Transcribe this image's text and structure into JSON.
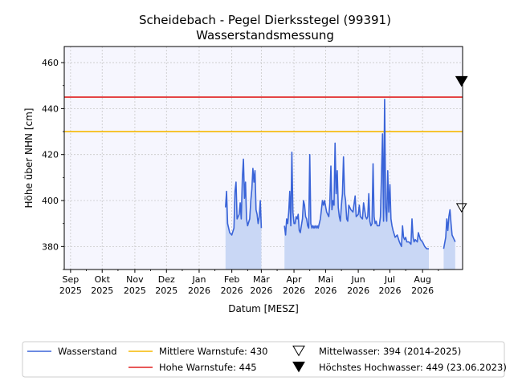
{
  "title_line1": "Scheidebach - Pegel Dierksstegel (99391)",
  "title_line2": "Wasserstandsmessung",
  "colors": {
    "wasserstand": "#3a64d8",
    "fill": "#c9d7f5",
    "mittlere_warnstufe": "#f5b800",
    "hohe_warnstufe": "#e02020",
    "plot_bg": "#f6f6fe"
  },
  "chart_data": {
    "type": "line",
    "title": "Scheidebach - Pegel Dierksstegel (99391)\nWasserstandsmessung",
    "xlabel": "Datum [MESZ]",
    "ylabel": "Höhe über NHN [cm]",
    "xlim": [
      "2025-08-26",
      "2026-09-08"
    ],
    "ylim": [
      370,
      467
    ],
    "grid": true,
    "legend_position": "bottom",
    "x_ticks": [
      {
        "date": "2025-09-01",
        "label": [
          "Sep",
          "2025"
        ]
      },
      {
        "date": "2025-10-01",
        "label": [
          "Okt",
          "2025"
        ]
      },
      {
        "date": "2025-11-01",
        "label": [
          "Nov",
          "2025"
        ]
      },
      {
        "date": "2025-12-01",
        "label": [
          "Dez",
          "2025"
        ]
      },
      {
        "date": "2026-01-01",
        "label": [
          "Jan",
          "2026"
        ]
      },
      {
        "date": "2026-02-01",
        "label": [
          "Feb",
          "2026"
        ]
      },
      {
        "date": "2026-03-01",
        "label": [
          "Mär",
          "2026"
        ]
      },
      {
        "date": "2026-04-01",
        "label": [
          "Apr",
          "2026"
        ]
      },
      {
        "date": "2026-05-01",
        "label": [
          "Mai",
          "2026"
        ]
      },
      {
        "date": "2026-06-01",
        "label": [
          "Jun",
          "2026"
        ]
      },
      {
        "date": "2026-07-01",
        "label": [
          "Jul",
          "2026"
        ]
      },
      {
        "date": "2026-08-01",
        "label": [
          "Aug",
          "2026"
        ]
      }
    ],
    "y_ticks": [
      380,
      400,
      420,
      440,
      460
    ],
    "hlines": [
      {
        "name": "Mittlere Warnstufe: 430",
        "y": 430,
        "color": "#f5b800"
      },
      {
        "name": "Hohe Warnstufe: 445",
        "y": 445,
        "color": "#e02020"
      }
    ],
    "markers": [
      {
        "name": "Mittelwasser: 394 (2014-2025)",
        "date": "2026-09-07",
        "y": 397,
        "style": "open-triangle-down"
      },
      {
        "name": "Höchstes Hochwasser: 449 (23.06.2023)",
        "date": "2026-09-07",
        "y": 452,
        "style": "filled-triangle-down"
      }
    ],
    "series": [
      {
        "name": "Wasserstand",
        "segments": [
          [
            [
              "2026-01-26",
              397
            ],
            [
              "2026-01-27",
              404
            ],
            [
              "2026-01-28",
              390
            ],
            [
              "2026-01-30",
              386
            ],
            [
              "2026-02-01",
              385
            ],
            [
              "2026-02-03",
              388
            ],
            [
              "2026-02-04",
              404
            ],
            [
              "2026-02-05",
              408
            ],
            [
              "2026-02-06",
              392
            ],
            [
              "2026-02-08",
              394
            ],
            [
              "2026-02-09",
              399
            ],
            [
              "2026-02-10",
              392
            ],
            [
              "2026-02-11",
              410
            ],
            [
              "2026-02-12",
              418
            ],
            [
              "2026-02-13",
              401
            ],
            [
              "2026-02-14",
              408
            ],
            [
              "2026-02-15",
              392
            ],
            [
              "2026-02-16",
              389
            ],
            [
              "2026-02-18",
              392
            ],
            [
              "2026-02-19",
              400
            ],
            [
              "2026-02-20",
              405
            ],
            [
              "2026-02-21",
              414
            ],
            [
              "2026-02-22",
              408
            ],
            [
              "2026-02-23",
              413
            ],
            [
              "2026-02-24",
              396
            ],
            [
              "2026-02-25",
              394
            ],
            [
              "2026-02-26",
              390
            ],
            [
              "2026-02-27",
              393
            ],
            [
              "2026-02-28",
              400
            ],
            [
              "2026-03-01",
              388
            ]
          ],
          [
            [
              "2026-03-23",
              389
            ],
            [
              "2026-03-24",
              385
            ],
            [
              "2026-03-25",
              392
            ],
            [
              "2026-03-26",
              390
            ],
            [
              "2026-03-27",
              395
            ],
            [
              "2026-03-28",
              404
            ],
            [
              "2026-03-29",
              389
            ],
            [
              "2026-03-30",
              421
            ],
            [
              "2026-03-31",
              395
            ],
            [
              "2026-04-01",
              390
            ],
            [
              "2026-04-02",
              390
            ],
            [
              "2026-04-03",
              393
            ],
            [
              "2026-04-04",
              392
            ],
            [
              "2026-04-05",
              394
            ],
            [
              "2026-04-06",
              387
            ],
            [
              "2026-04-07",
              386
            ],
            [
              "2026-04-08",
              389
            ],
            [
              "2026-04-09",
              392
            ],
            [
              "2026-04-10",
              400
            ],
            [
              "2026-04-11",
              398
            ],
            [
              "2026-04-12",
              393
            ],
            [
              "2026-04-13",
              392
            ],
            [
              "2026-04-14",
              389
            ],
            [
              "2026-04-15",
              388
            ],
            [
              "2026-04-16",
              420
            ],
            [
              "2026-04-17",
              390
            ],
            [
              "2026-04-18",
              388
            ],
            [
              "2026-04-19",
              389
            ],
            [
              "2026-04-20",
              388
            ],
            [
              "2026-04-21",
              389
            ],
            [
              "2026-04-22",
              388
            ],
            [
              "2026-04-23",
              389
            ],
            [
              "2026-04-24",
              388
            ],
            [
              "2026-04-26",
              392
            ],
            [
              "2026-04-28",
              400
            ],
            [
              "2026-04-29",
              398
            ],
            [
              "2026-04-30",
              400
            ],
            [
              "2026-05-02",
              395
            ],
            [
              "2026-05-04",
              393
            ],
            [
              "2026-05-05",
              399
            ],
            [
              "2026-05-06",
              415
            ],
            [
              "2026-05-07",
              396
            ],
            [
              "2026-05-08",
              400
            ],
            [
              "2026-05-09",
              398
            ],
            [
              "2026-05-10",
              425
            ],
            [
              "2026-05-11",
              403
            ],
            [
              "2026-05-12",
              413
            ],
            [
              "2026-05-13",
              397
            ],
            [
              "2026-05-14",
              393
            ],
            [
              "2026-05-15",
              391
            ],
            [
              "2026-05-16",
              398
            ],
            [
              "2026-05-17",
              403
            ],
            [
              "2026-05-18",
              419
            ],
            [
              "2026-05-19",
              403
            ],
            [
              "2026-05-20",
              400
            ],
            [
              "2026-05-21",
              392
            ],
            [
              "2026-05-22",
              391
            ],
            [
              "2026-05-23",
              398
            ],
            [
              "2026-05-25",
              396
            ],
            [
              "2026-05-27",
              395
            ],
            [
              "2026-05-29",
              402
            ],
            [
              "2026-05-30",
              393
            ],
            [
              "2026-06-01",
              394
            ],
            [
              "2026-06-02",
              398
            ],
            [
              "2026-06-03",
              393
            ],
            [
              "2026-06-05",
              392
            ],
            [
              "2026-06-06",
              399
            ],
            [
              "2026-06-07",
              396
            ],
            [
              "2026-06-08",
              393
            ],
            [
              "2026-06-09",
              392
            ],
            [
              "2026-06-10",
              393
            ],
            [
              "2026-06-11",
              403
            ],
            [
              "2026-06-12",
              391
            ],
            [
              "2026-06-13",
              389
            ],
            [
              "2026-06-14",
              390
            ],
            [
              "2026-06-15",
              416
            ],
            [
              "2026-06-16",
              393
            ],
            [
              "2026-06-17",
              390
            ],
            [
              "2026-06-18",
              391
            ],
            [
              "2026-06-19",
              389
            ],
            [
              "2026-06-21",
              389
            ],
            [
              "2026-06-22",
              393
            ],
            [
              "2026-06-24",
              429
            ],
            [
              "2026-06-25",
              391
            ],
            [
              "2026-06-26",
              444
            ],
            [
              "2026-06-27",
              397
            ],
            [
              "2026-06-28",
              391
            ],
            [
              "2026-06-29",
              413
            ],
            [
              "2026-06-30",
              395
            ],
            [
              "2026-07-01",
              407
            ],
            [
              "2026-07-02",
              392
            ],
            [
              "2026-07-03",
              389
            ],
            [
              "2026-07-04",
              387
            ],
            [
              "2026-07-06",
              384
            ],
            [
              "2026-07-08",
              385
            ],
            [
              "2026-07-10",
              382
            ],
            [
              "2026-07-11",
              381
            ],
            [
              "2026-07-12",
              380
            ],
            [
              "2026-07-13",
              389
            ],
            [
              "2026-07-14",
              384
            ],
            [
              "2026-07-15",
              383
            ],
            [
              "2026-07-16",
              384
            ],
            [
              "2026-07-17",
              382
            ],
            [
              "2026-07-19",
              382
            ],
            [
              "2026-07-21",
              381
            ],
            [
              "2026-07-22",
              392
            ],
            [
              "2026-07-23",
              384
            ],
            [
              "2026-07-24",
              382
            ],
            [
              "2026-07-25",
              383
            ],
            [
              "2026-07-27",
              382
            ],
            [
              "2026-07-28",
              386
            ],
            [
              "2026-07-30",
              383
            ],
            [
              "2026-08-01",
              382
            ],
            [
              "2026-08-03",
              380
            ],
            [
              "2026-08-05",
              379
            ],
            [
              "2026-08-07",
              379
            ]
          ],
          [
            [
              "2026-08-21",
              379
            ],
            [
              "2026-08-23",
              384
            ],
            [
              "2026-08-24",
              392
            ],
            [
              "2026-08-25",
              387
            ],
            [
              "2026-08-26",
              393
            ],
            [
              "2026-08-27",
              396
            ],
            [
              "2026-08-28",
              390
            ],
            [
              "2026-08-29",
              385
            ],
            [
              "2026-08-31",
              383
            ],
            [
              "2026-09-01",
              382
            ]
          ]
        ]
      }
    ]
  },
  "legend": {
    "items": [
      {
        "label": "Wasserstand",
        "kind": "line",
        "color": "#3a64d8"
      },
      {
        "label": "Mittlere Warnstufe: 430",
        "kind": "line",
        "color": "#f5b800"
      },
      {
        "label": "Hohe Warnstufe: 445",
        "kind": "line",
        "color": "#e02020"
      },
      {
        "label": "Mittelwasser: 394 (2014-2025)",
        "kind": "open-triangle"
      },
      {
        "label": "Höchstes Hochwasser: 449 (23.06.2023)",
        "kind": "filled-triangle"
      }
    ]
  }
}
